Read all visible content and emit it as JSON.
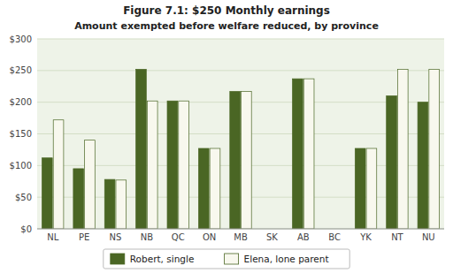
{
  "chart_data": {
    "type": "bar",
    "title": "Figure 7.1: $250 Monthly earnings",
    "subtitle": "Amount exempted before welfare reduced, by province",
    "categories": [
      "NL",
      "PE",
      "NS",
      "NB",
      "QC",
      "ON",
      "MB",
      "SK",
      "AB",
      "BC",
      "YK",
      "NT",
      "NU"
    ],
    "series": [
      {
        "name": "Robert, single",
        "color": "#4a6624",
        "values": [
          112,
          95,
          78,
          252,
          202,
          127,
          217,
          0,
          237,
          0,
          127,
          210,
          200
        ]
      },
      {
        "name": "Elena, lone parent",
        "color": "#f8f8ee",
        "values": [
          172,
          140,
          77,
          202,
          202,
          127,
          217,
          0,
          237,
          0,
          127,
          252,
          252
        ]
      }
    ],
    "ylim": [
      0,
      300
    ],
    "yticks": [
      {
        "value": 0,
        "label": "$0"
      },
      {
        "value": 50,
        "label": "$50"
      },
      {
        "value": 100,
        "label": "$100"
      },
      {
        "value": 150,
        "label": "$150"
      },
      {
        "value": 200,
        "label": "$200"
      },
      {
        "value": 250,
        "label": "$250"
      },
      {
        "value": 300,
        "label": "$300"
      }
    ],
    "grid": true,
    "legend": "bottom"
  }
}
